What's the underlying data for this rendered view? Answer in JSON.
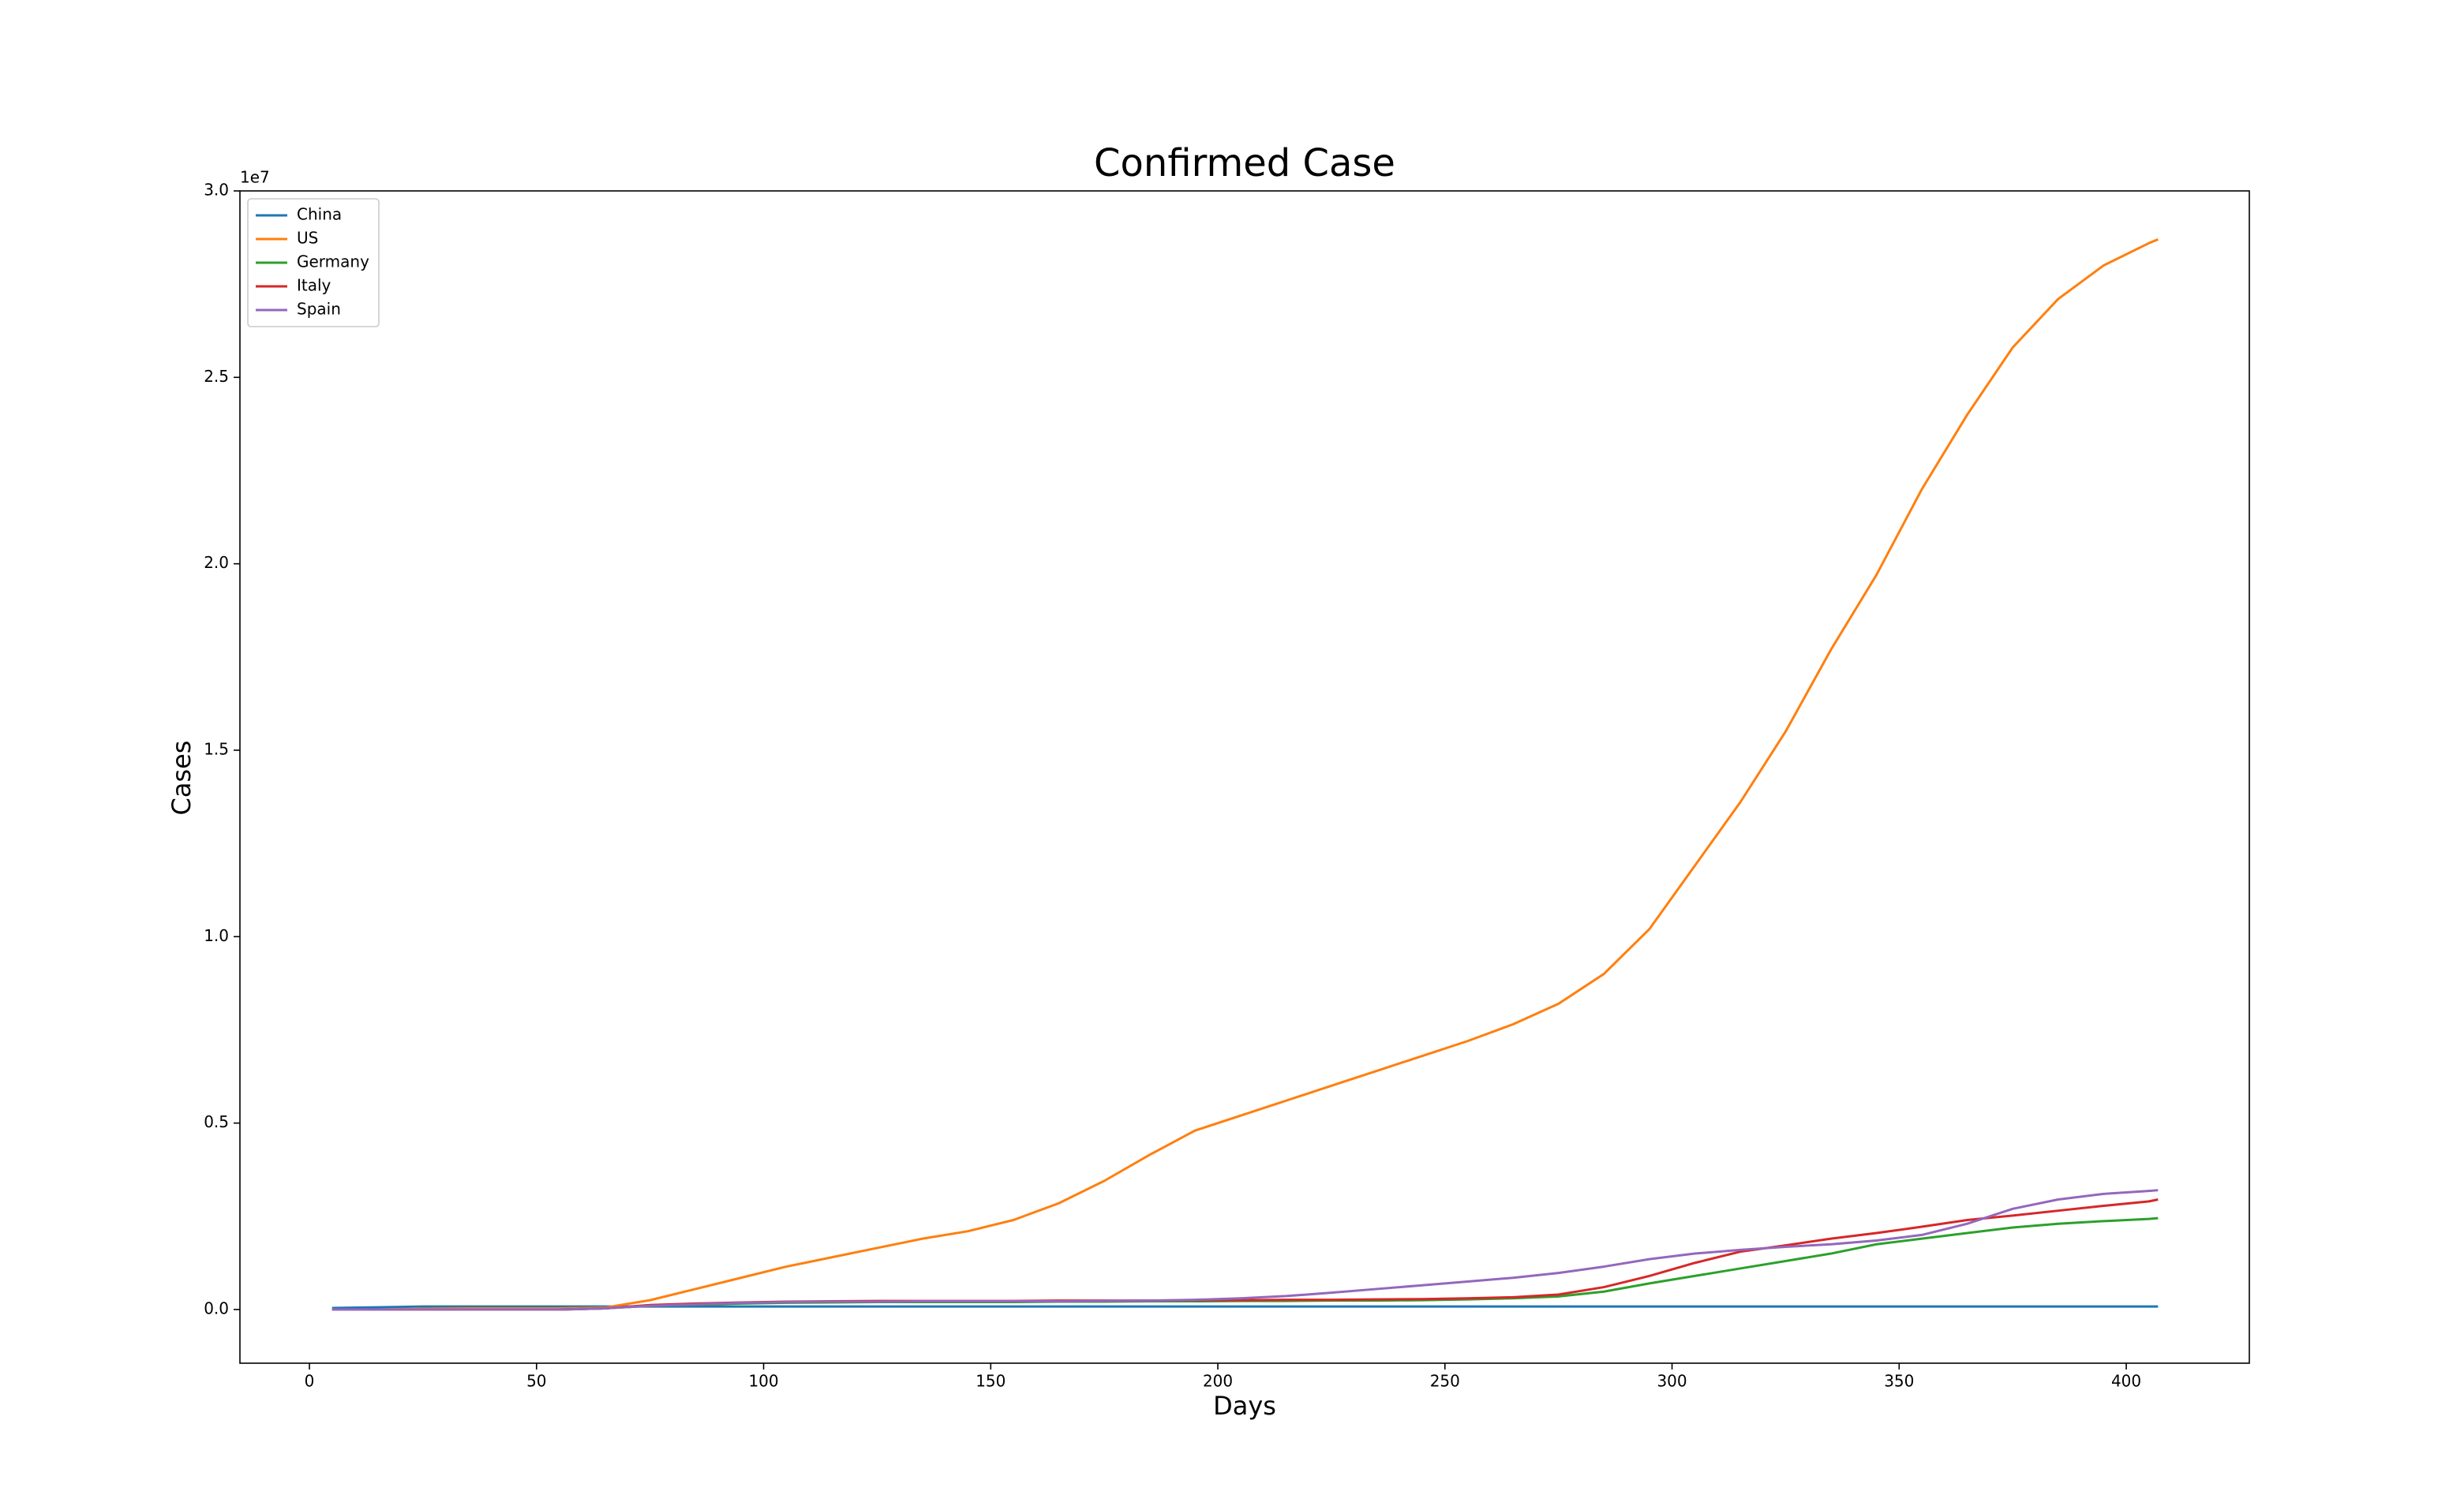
{
  "chart_data": {
    "type": "line",
    "title": "Confirmed Case",
    "x_label": "Days",
    "y_label": "Cases",
    "y_offset_label": "1e7",
    "x": [
      5,
      15,
      25,
      35,
      45,
      55,
      65,
      75,
      85,
      95,
      105,
      115,
      125,
      135,
      145,
      155,
      165,
      175,
      185,
      195,
      205,
      215,
      225,
      235,
      245,
      255,
      265,
      275,
      285,
      295,
      305,
      315,
      325,
      335,
      345,
      355,
      365,
      375,
      385,
      395,
      405,
      407
    ],
    "series": [
      {
        "name": "China",
        "color": "#1f77b4",
        "values": [
          0.004,
          0.006,
          0.008,
          0.008,
          0.008,
          0.008,
          0.008,
          0.008,
          0.008,
          0.008,
          0.008,
          0.008,
          0.008,
          0.008,
          0.008,
          0.008,
          0.008,
          0.008,
          0.008,
          0.008,
          0.008,
          0.008,
          0.008,
          0.008,
          0.008,
          0.008,
          0.008,
          0.008,
          0.008,
          0.008,
          0.008,
          0.008,
          0.008,
          0.008,
          0.008,
          0.008,
          0.008,
          0.008,
          0.008,
          0.008,
          0.008,
          0.008
        ]
      },
      {
        "name": "US",
        "color": "#ff7f0e",
        "values": [
          0,
          0,
          0.002,
          0.003,
          0.003,
          0.003,
          0.005,
          0.025,
          0.055,
          0.085,
          0.115,
          0.14,
          0.165,
          0.19,
          0.21,
          0.24,
          0.285,
          0.345,
          0.415,
          0.48,
          0.52,
          0.56,
          0.6,
          0.64,
          0.68,
          0.72,
          0.765,
          0.82,
          0.9,
          1.02,
          1.19,
          1.36,
          1.55,
          1.77,
          1.97,
          2.2,
          2.4,
          2.58,
          2.71,
          2.8,
          2.86,
          2.87
        ]
      },
      {
        "name": "Germany",
        "color": "#2ca02c",
        "values": [
          0,
          0,
          0,
          0,
          0,
          0,
          0.003,
          0.01,
          0.013,
          0.016,
          0.018,
          0.019,
          0.02,
          0.02,
          0.02,
          0.02,
          0.021,
          0.021,
          0.022,
          0.022,
          0.023,
          0.023,
          0.024,
          0.024,
          0.025,
          0.027,
          0.03,
          0.035,
          0.048,
          0.07,
          0.09,
          0.11,
          0.13,
          0.15,
          0.175,
          0.19,
          0.205,
          0.22,
          0.23,
          0.237,
          0.243,
          0.245
        ]
      },
      {
        "name": "Italy",
        "color": "#d62728",
        "values": [
          0,
          0,
          0,
          0,
          0,
          0,
          0.003,
          0.012,
          0.016,
          0.019,
          0.021,
          0.022,
          0.023,
          0.023,
          0.023,
          0.023,
          0.024,
          0.024,
          0.024,
          0.025,
          0.025,
          0.026,
          0.026,
          0.027,
          0.028,
          0.03,
          0.033,
          0.04,
          0.06,
          0.09,
          0.125,
          0.155,
          0.172,
          0.19,
          0.205,
          0.222,
          0.24,
          0.252,
          0.265,
          0.278,
          0.29,
          0.295
        ]
      },
      {
        "name": "Spain",
        "color": "#9467bd",
        "values": [
          0,
          0,
          0,
          0,
          0,
          0,
          0.003,
          0.01,
          0.014,
          0.018,
          0.02,
          0.021,
          0.021,
          0.022,
          0.022,
          0.022,
          0.022,
          0.023,
          0.024,
          0.026,
          0.03,
          0.036,
          0.045,
          0.055,
          0.065,
          0.075,
          0.085,
          0.098,
          0.115,
          0.135,
          0.15,
          0.16,
          0.168,
          0.175,
          0.185,
          0.2,
          0.23,
          0.27,
          0.295,
          0.31,
          0.318,
          0.32
        ]
      }
    ],
    "xlim": [
      -15.3,
      427.1
    ],
    "xticks": [
      0,
      50,
      100,
      150,
      200,
      250,
      300,
      350,
      400
    ],
    "ylim": [
      -0.144,
      3.0
    ],
    "yticks": [
      {
        "value": 0,
        "label": "0.0"
      },
      0.5,
      {
        "value": 1,
        "label": "1.0"
      },
      1.5,
      {
        "value": 2,
        "label": "2.0"
      },
      2.5,
      {
        "value": 3,
        "label": "3.0"
      }
    ],
    "legend": "upper left",
    "grid": false
  }
}
